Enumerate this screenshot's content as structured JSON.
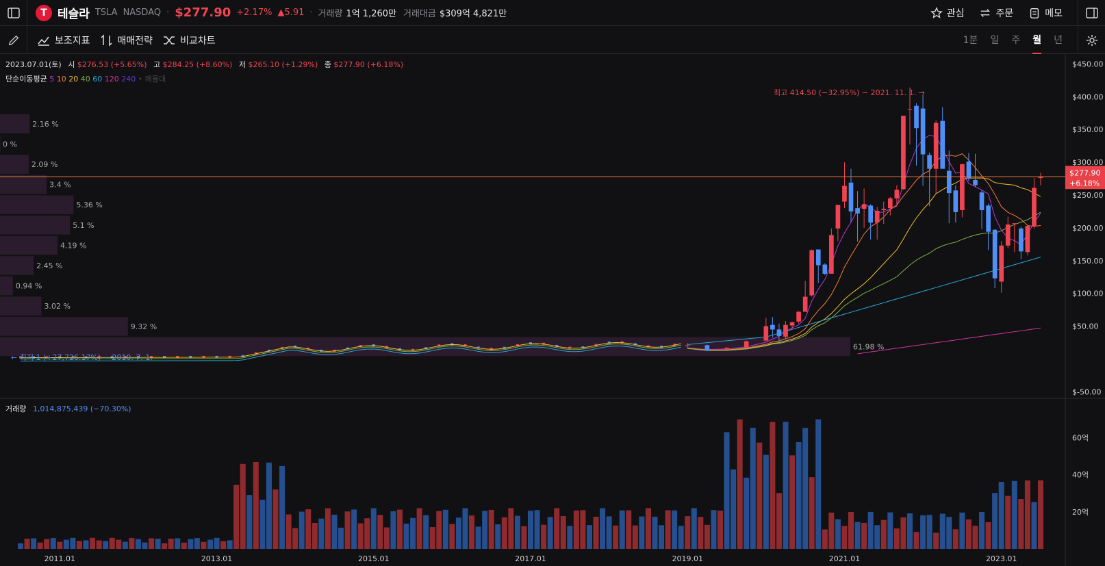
{
  "header": {
    "name": "테슬라",
    "ticker": "TSLA",
    "exchange": "NASDAQ",
    "price": "$277.90",
    "change_pct": "+2.17%",
    "change_abs": "▲5.91",
    "volume_label": "거래량",
    "volume_value": "1억 1,260만",
    "amount_label": "거래대금",
    "amount_value": "$309억 4,821만",
    "actions": {
      "watch": "관심",
      "order": "주문",
      "memo": "메모"
    }
  },
  "toolbar": {
    "indicators": "보조지표",
    "strategy": "매매전략",
    "compare": "비교차트",
    "periods": [
      "1분",
      "일",
      "주",
      "월",
      "년"
    ],
    "active_period": "월"
  },
  "legend": {
    "date": "2023.07.01(토)",
    "open_lbl": "시",
    "open": "$276.53 (+5.65%)",
    "high_lbl": "고",
    "high": "$284.25 (+8.60%)",
    "low_lbl": "저",
    "low": "$265.10 (+1.29%)",
    "close_lbl": "종",
    "close": "$277.90 (+6.18%)",
    "ma_title": "단순이동평균",
    "ma_periods": [
      "5",
      "10",
      "20",
      "40",
      "60",
      "120",
      "240"
    ],
    "ma_colors": [
      "#b33ad6",
      "#f5793b",
      "#f2c12e",
      "#7cb342",
      "#29a8d6",
      "#d6339c",
      "#5b3fd1"
    ],
    "ma_extra": "• 매물대"
  },
  "annotations": {
    "high": "최고 414.50 (−32.95%) − 2021. 11. 1. →",
    "low": "← 최저 1 (+27,726.17%) − 2010. 7. 1."
  },
  "price_tag": {
    "price": "$277.90",
    "pct": "+6.18%"
  },
  "volume_legend": {
    "label": "거래량",
    "value": "1,014,875,439 (−70.30%)"
  },
  "colors": {
    "up": "#f04452",
    "down": "#4f8ff7",
    "bg": "#111113",
    "profile": "#2a1c2c"
  },
  "chart_data": {
    "type": "candlestick",
    "y_axis": {
      "ticks": [
        "$450.00",
        "$400.00",
        "$350.00",
        "$300.00",
        "$250.00",
        "$200.00",
        "$150.00",
        "$100.00",
        "$50.00",
        "$-50.00"
      ],
      "values": [
        450,
        400,
        350,
        300,
        250,
        200,
        150,
        100,
        50,
        -50
      ],
      "range": [
        -60,
        465
      ]
    },
    "x_axis": {
      "ticks": [
        "2011.01",
        "2013.01",
        "2015.01",
        "2017.01",
        "2019.01",
        "2021.01",
        "2023.01"
      ]
    },
    "volume_axis": {
      "ticks": [
        "60억",
        "40억",
        "20억"
      ],
      "values": [
        60,
        40,
        20
      ],
      "range": [
        0,
        75
      ]
    },
    "volume_profile": [
      {
        "label": "2.16 %",
        "pct": 2.16
      },
      {
        "label": "0 %",
        "pct": 0
      },
      {
        "label": "2.09 %",
        "pct": 2.09
      },
      {
        "label": "3.4 %",
        "pct": 3.4
      },
      {
        "label": "5.36 %",
        "pct": 5.36
      },
      {
        "label": "5.1 %",
        "pct": 5.1
      },
      {
        "label": "4.19 %",
        "pct": 4.19
      },
      {
        "label": "2.45 %",
        "pct": 2.45
      },
      {
        "label": "0.94 %",
        "pct": 0.94
      },
      {
        "label": "3.02 %",
        "pct": 3.02
      },
      {
        "label": "9.32 %",
        "pct": 9.32
      },
      {
        "label": "61.98 %",
        "pct": 61.98
      }
    ],
    "candles": [
      {
        "d": "2019.01",
        "o": 20,
        "h": 24,
        "l": 17,
        "c": 21
      },
      {
        "d": "2019.04",
        "o": 21,
        "h": 22,
        "l": 12,
        "c": 13
      },
      {
        "d": "2019.07",
        "o": 15,
        "h": 18,
        "l": 14,
        "c": 17
      },
      {
        "d": "2019.10",
        "o": 17,
        "h": 28,
        "l": 16,
        "c": 27
      },
      {
        "d": "2020.01",
        "o": 28,
        "h": 63,
        "l": 28,
        "c": 50
      },
      {
        "d": "2020.02",
        "o": 52,
        "h": 64,
        "l": 33,
        "c": 45
      },
      {
        "d": "2020.03",
        "o": 45,
        "h": 54,
        "l": 24,
        "c": 35
      },
      {
        "d": "2020.04",
        "o": 34,
        "h": 58,
        "l": 30,
        "c": 52
      },
      {
        "d": "2020.05",
        "o": 51,
        "h": 57,
        "l": 45,
        "c": 56
      },
      {
        "d": "2020.06",
        "o": 57,
        "h": 73,
        "l": 54,
        "c": 72
      },
      {
        "d": "2020.07",
        "o": 72,
        "h": 119,
        "l": 72,
        "c": 95
      },
      {
        "d": "2020.08",
        "o": 97,
        "h": 167,
        "l": 95,
        "c": 166
      },
      {
        "d": "2020.09",
        "o": 167,
        "h": 167,
        "l": 116,
        "c": 143
      },
      {
        "d": "2020.10",
        "o": 144,
        "h": 146,
        "l": 128,
        "c": 130
      },
      {
        "d": "2020.11",
        "o": 130,
        "h": 199,
        "l": 130,
        "c": 189
      },
      {
        "d": "2020.12",
        "o": 199,
        "h": 233,
        "l": 180,
        "c": 235
      },
      {
        "d": "2021.01",
        "o": 240,
        "h": 300,
        "l": 230,
        "c": 264
      },
      {
        "d": "2021.02",
        "o": 269,
        "h": 290,
        "l": 208,
        "c": 225
      },
      {
        "d": "2021.03",
        "o": 230,
        "h": 256,
        "l": 179,
        "c": 222
      },
      {
        "d": "2021.04",
        "o": 229,
        "h": 260,
        "l": 200,
        "c": 236
      },
      {
        "d": "2021.05",
        "o": 234,
        "h": 236,
        "l": 182,
        "c": 208
      },
      {
        "d": "2021.06",
        "o": 208,
        "h": 232,
        "l": 182,
        "c": 226
      },
      {
        "d": "2021.07",
        "o": 227,
        "h": 240,
        "l": 206,
        "c": 229
      },
      {
        "d": "2021.08",
        "o": 230,
        "h": 247,
        "l": 219,
        "c": 245
      },
      {
        "d": "2021.09",
        "o": 245,
        "h": 265,
        "l": 236,
        "c": 258
      },
      {
        "d": "2021.10",
        "o": 259,
        "h": 371,
        "l": 258,
        "c": 371
      },
      {
        "d": "2021.11",
        "o": 381,
        "h": 414,
        "l": 327,
        "c": 381
      },
      {
        "d": "2021.12",
        "o": 386,
        "h": 390,
        "l": 295,
        "c": 352
      },
      {
        "d": "2022.01",
        "o": 382,
        "h": 403,
        "l": 264,
        "c": 312
      },
      {
        "d": "2022.02",
        "o": 311,
        "h": 315,
        "l": 233,
        "c": 290
      },
      {
        "d": "2022.03",
        "o": 290,
        "h": 364,
        "l": 252,
        "c": 360
      },
      {
        "d": "2022.04",
        "o": 363,
        "h": 384,
        "l": 290,
        "c": 290
      },
      {
        "d": "2022.05",
        "o": 287,
        "h": 318,
        "l": 207,
        "c": 253
      },
      {
        "d": "2022.06",
        "o": 257,
        "h": 265,
        "l": 208,
        "c": 224
      },
      {
        "d": "2022.07",
        "o": 227,
        "h": 298,
        "l": 216,
        "c": 297
      },
      {
        "d": "2022.08",
        "o": 301,
        "h": 314,
        "l": 271,
        "c": 275
      },
      {
        "d": "2022.09",
        "o": 273,
        "h": 313,
        "l": 262,
        "c": 265
      },
      {
        "d": "2022.10",
        "o": 254,
        "h": 257,
        "l": 198,
        "c": 227
      },
      {
        "d": "2022.11",
        "o": 234,
        "h": 237,
        "l": 166,
        "c": 194
      },
      {
        "d": "2022.12",
        "o": 197,
        "h": 198,
        "l": 108,
        "c": 123
      },
      {
        "d": "2023.01",
        "o": 118,
        "h": 180,
        "l": 101,
        "c": 173
      },
      {
        "d": "2023.02",
        "o": 173,
        "h": 217,
        "l": 169,
        "c": 205
      },
      {
        "d": "2023.03",
        "o": 206,
        "h": 207,
        "l": 163,
        "c": 207
      },
      {
        "d": "2023.04",
        "o": 199,
        "h": 202,
        "l": 152,
        "c": 164
      },
      {
        "d": "2023.05",
        "o": 163,
        "h": 204,
        "l": 158,
        "c": 203
      },
      {
        "d": "2023.06",
        "o": 202,
        "h": 276,
        "l": 199,
        "c": 261
      },
      {
        "d": "2023.07",
        "o": 276,
        "h": 284,
        "l": 265,
        "c": 278
      }
    ]
  }
}
